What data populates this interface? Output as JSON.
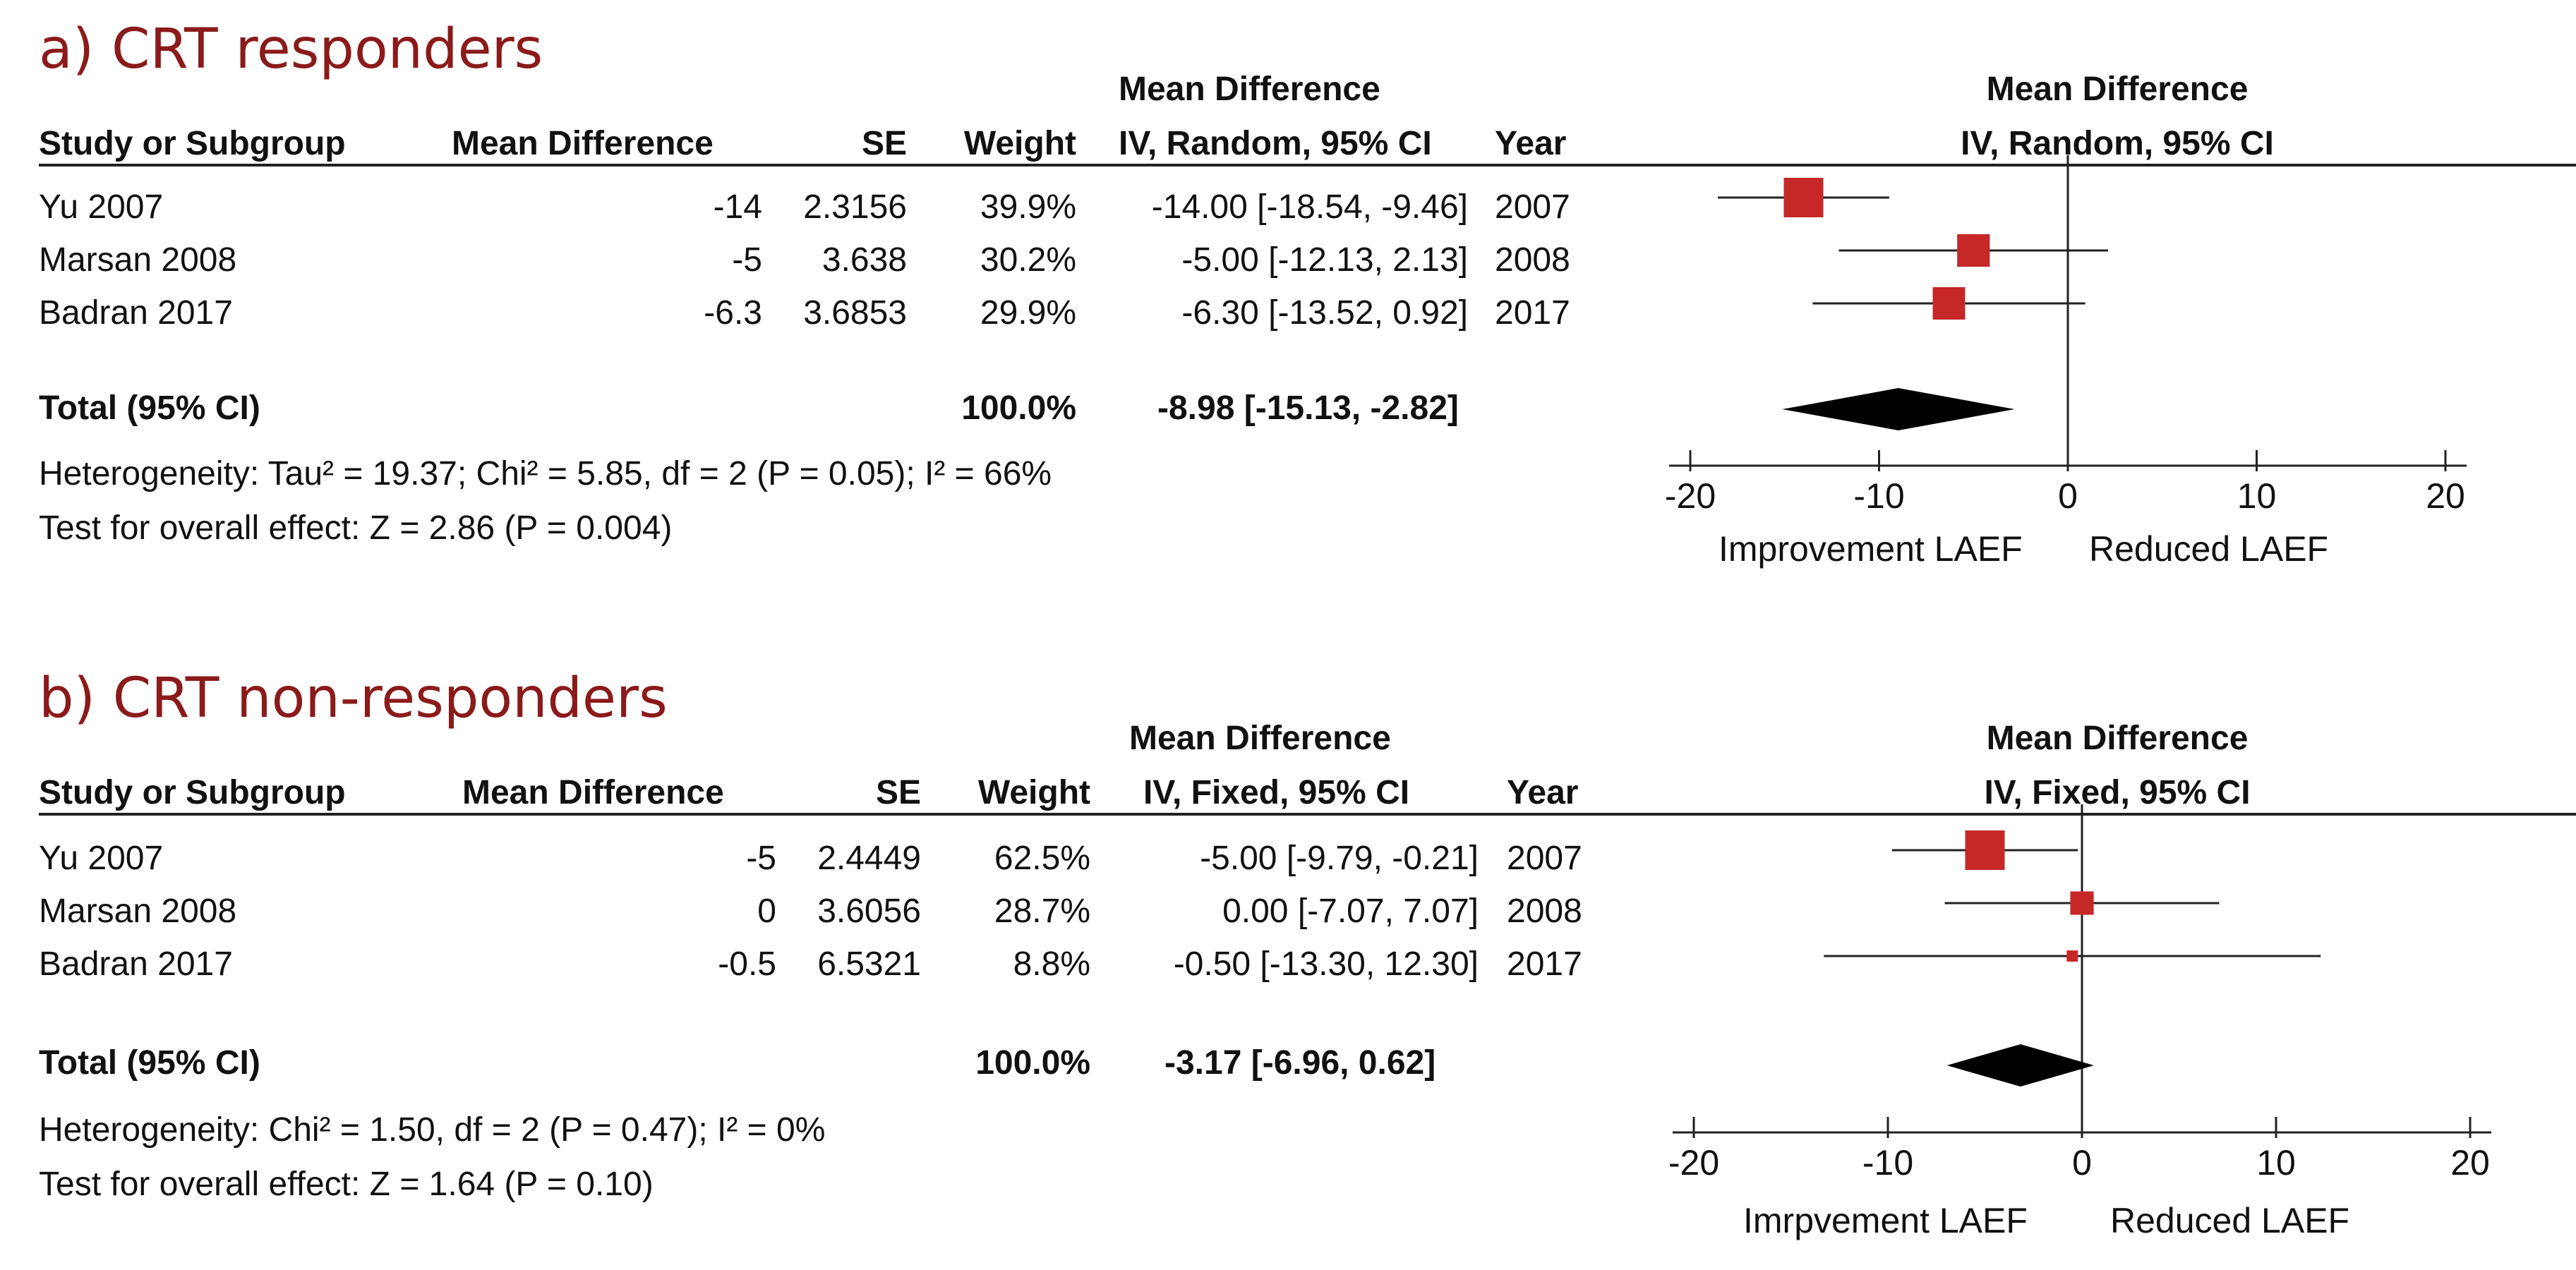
{
  "panels": [
    {
      "title": "a) CRT responders",
      "headers": {
        "study": "Study or Subgroup",
        "mean_difference": "Mean Difference",
        "se": "SE",
        "weight": "Weight",
        "ci_top": "Mean Difference",
        "ci_bottom": "IV, Random, 95% CI",
        "year": "Year",
        "plot_top": "Mean Difference",
        "plot_bottom": "IV, Random, 95% CI"
      },
      "rows": [
        {
          "study": "Yu 2007",
          "md": "-14",
          "se": "2.3156",
          "weight": "39.9%",
          "ci": "-14.00 [-18.54, -9.46]",
          "year": "2007"
        },
        {
          "study": "Marsan 2008",
          "md": "-5",
          "se": "3.638",
          "weight": "30.2%",
          "ci": "-5.00 [-12.13, 2.13]",
          "year": "2008"
        },
        {
          "study": "Badran 2017",
          "md": "-6.3",
          "se": "3.6853",
          "weight": "29.9%",
          "ci": "-6.30 [-13.52, 0.92]",
          "year": "2017"
        }
      ],
      "total": {
        "label": "Total (95% CI)",
        "weight": "100.0%",
        "ci": "-8.98 [-15.13, -2.82]"
      },
      "heterogeneity": "Heterogeneity: Tau² = 19.37; Chi² = 5.85, df = 2 (P = 0.05); I² = 66%",
      "overall_effect": "Test for overall effect: Z = 2.86 (P = 0.004)",
      "axis_left_label": "Improvement LAEF",
      "axis_right_label": "Reduced LAEF"
    },
    {
      "title": "b) CRT non-responders",
      "headers": {
        "study": "Study or Subgroup",
        "mean_difference": "Mean Difference",
        "se": "SE",
        "weight": "Weight",
        "ci_top": "Mean Difference",
        "ci_bottom": "IV, Fixed, 95% CI",
        "year": "Year",
        "plot_top": "Mean Difference",
        "plot_bottom": "IV, Fixed, 95% CI"
      },
      "rows": [
        {
          "study": "Yu 2007",
          "md": "-5",
          "se": "2.4449",
          "weight": "62.5%",
          "ci": "-5.00 [-9.79, -0.21]",
          "year": "2007"
        },
        {
          "study": "Marsan 2008",
          "md": "0",
          "se": "3.6056",
          "weight": "28.7%",
          "ci": "0.00 [-7.07, 7.07]",
          "year": "2008"
        },
        {
          "study": "Badran 2017",
          "md": "-0.5",
          "se": "6.5321",
          "weight": "8.8%",
          "ci": "-0.50 [-13.30, 12.30]",
          "year": "2017"
        }
      ],
      "total": {
        "label": "Total (95% CI)",
        "weight": "100.0%",
        "ci": "-3.17 [-6.96, 0.62]"
      },
      "heterogeneity": "Heterogeneity: Chi² = 1.50, df = 2 (P = 0.47); I² = 0%",
      "overall_effect": "Test for overall effect: Z = 1.64 (P = 0.10)",
      "axis_left_label": "Imrpvement LAEF",
      "axis_right_label": "Reduced LAEF"
    }
  ],
  "chart_data": [
    {
      "type": "forest",
      "title": "a) CRT responders",
      "xlim": [
        -20,
        20
      ],
      "xticks": [
        -20,
        -10,
        0,
        10,
        20
      ],
      "studies": [
        {
          "name": "Yu 2007",
          "estimate": -14.0,
          "ci_low": -18.54,
          "ci_high": -9.46,
          "weight": 39.9
        },
        {
          "name": "Marsan 2008",
          "estimate": -5.0,
          "ci_low": -12.13,
          "ci_high": 2.13,
          "weight": 30.2
        },
        {
          "name": "Badran 2017",
          "estimate": -6.3,
          "ci_low": -13.52,
          "ci_high": 0.92,
          "weight": 29.9
        }
      ],
      "total": {
        "estimate": -8.98,
        "ci_low": -15.13,
        "ci_high": -2.82
      },
      "xlabel_left": "Improvement LAEF",
      "xlabel_right": "Reduced LAEF",
      "marker_color": "#c62828"
    },
    {
      "type": "forest",
      "title": "b) CRT non-responders",
      "xlim": [
        -20,
        20
      ],
      "xticks": [
        -20,
        -10,
        0,
        10,
        20
      ],
      "studies": [
        {
          "name": "Yu 2007",
          "estimate": -5.0,
          "ci_low": -9.79,
          "ci_high": -0.21,
          "weight": 62.5
        },
        {
          "name": "Marsan 2008",
          "estimate": 0.0,
          "ci_low": -7.07,
          "ci_high": 7.07,
          "weight": 28.7
        },
        {
          "name": "Badran 2017",
          "estimate": -0.5,
          "ci_low": -13.3,
          "ci_high": 12.3,
          "weight": 8.8
        }
      ],
      "total": {
        "estimate": -3.17,
        "ci_low": -6.96,
        "ci_high": 0.62
      },
      "xlabel_left": "Imrpvement LAEF",
      "xlabel_right": "Reduced LAEF",
      "marker_color": "#c62828"
    }
  ]
}
